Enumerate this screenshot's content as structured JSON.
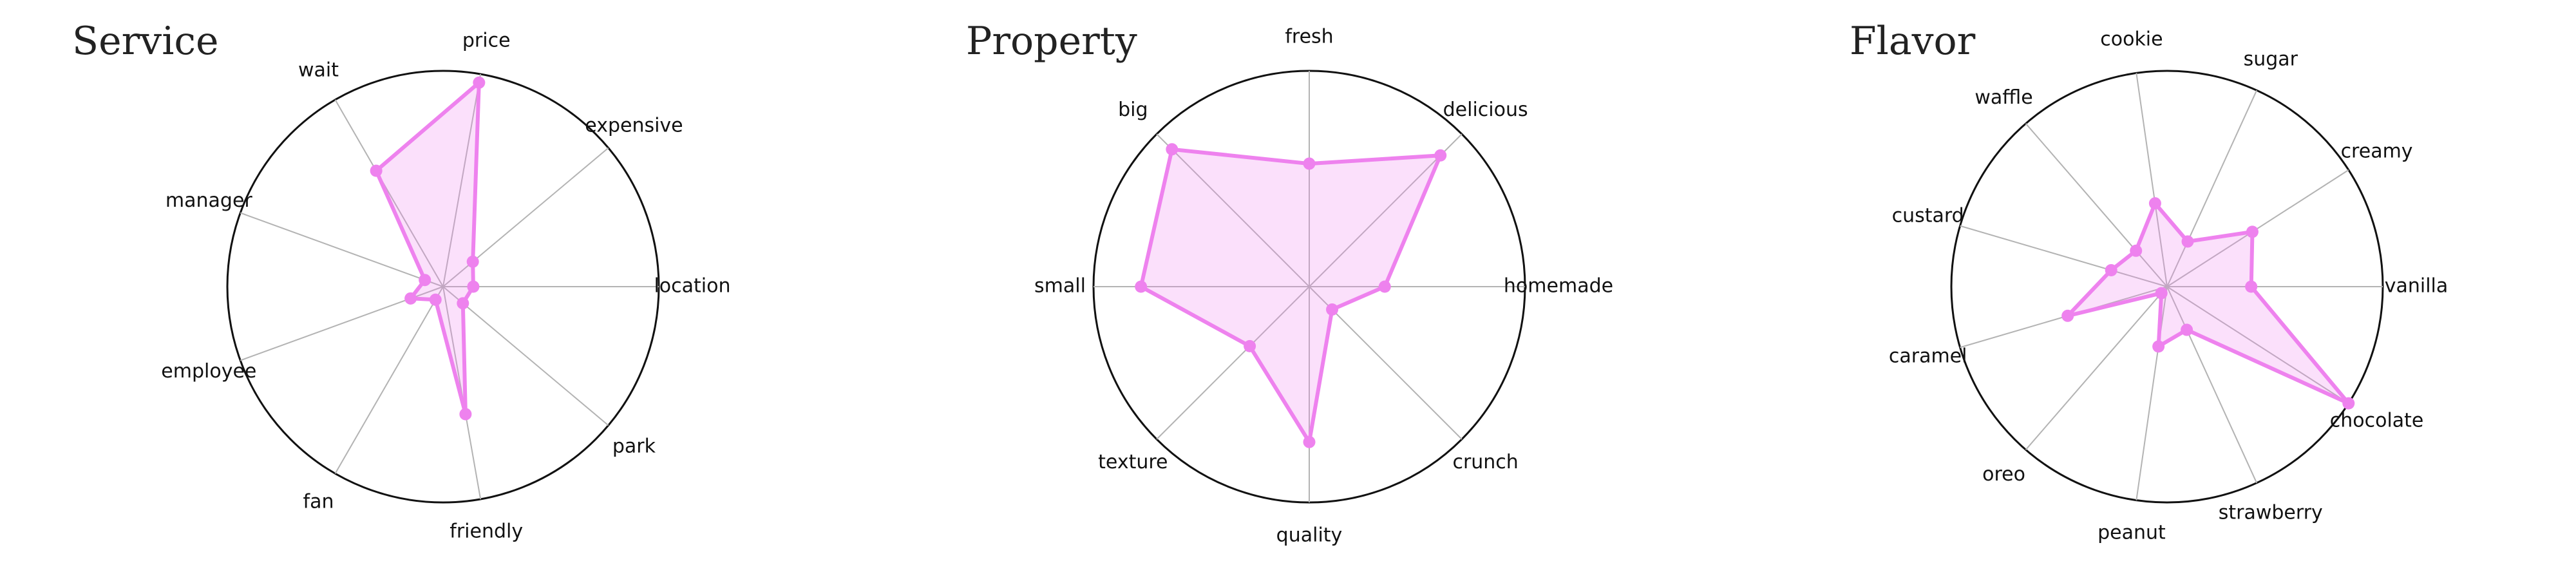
{
  "style": {
    "series_color": "#ee82ee",
    "fill_opacity": 0.25,
    "ring_color": "#111111",
    "spoke_color": "#b3b3b3"
  },
  "chart_data": [
    {
      "type": "radar",
      "title": "Service",
      "rlim": [
        0,
        1
      ],
      "grid": "spokes-only",
      "axes": [
        "location",
        "expensive",
        "price",
        "wait",
        "manager",
        "employee",
        "fan",
        "friendly",
        "park"
      ],
      "values": [
        0.14,
        0.18,
        0.96,
        0.62,
        0.09,
        0.16,
        0.07,
        0.6,
        0.12
      ]
    },
    {
      "type": "radar",
      "title": "Property",
      "rlim": [
        0,
        1
      ],
      "grid": "spokes-only",
      "axes": [
        "homemade",
        "delicious",
        "fresh",
        "big",
        "small",
        "texture",
        "quality",
        "crunch"
      ],
      "values": [
        0.35,
        0.86,
        0.57,
        0.9,
        0.78,
        0.39,
        0.72,
        0.15
      ]
    },
    {
      "type": "radar",
      "title": "Flavor",
      "rlim": [
        0,
        1
      ],
      "grid": "spokes-only",
      "axes": [
        "vanilla",
        "creamy",
        "sugar",
        "cookie",
        "waffle",
        "custard",
        "caramel",
        "oreo",
        "peanut",
        "strawberry",
        "chocolate"
      ],
      "values": [
        0.39,
        0.47,
        0.23,
        0.39,
        0.22,
        0.27,
        0.48,
        0.04,
        0.28,
        0.22,
        1.0
      ]
    }
  ]
}
